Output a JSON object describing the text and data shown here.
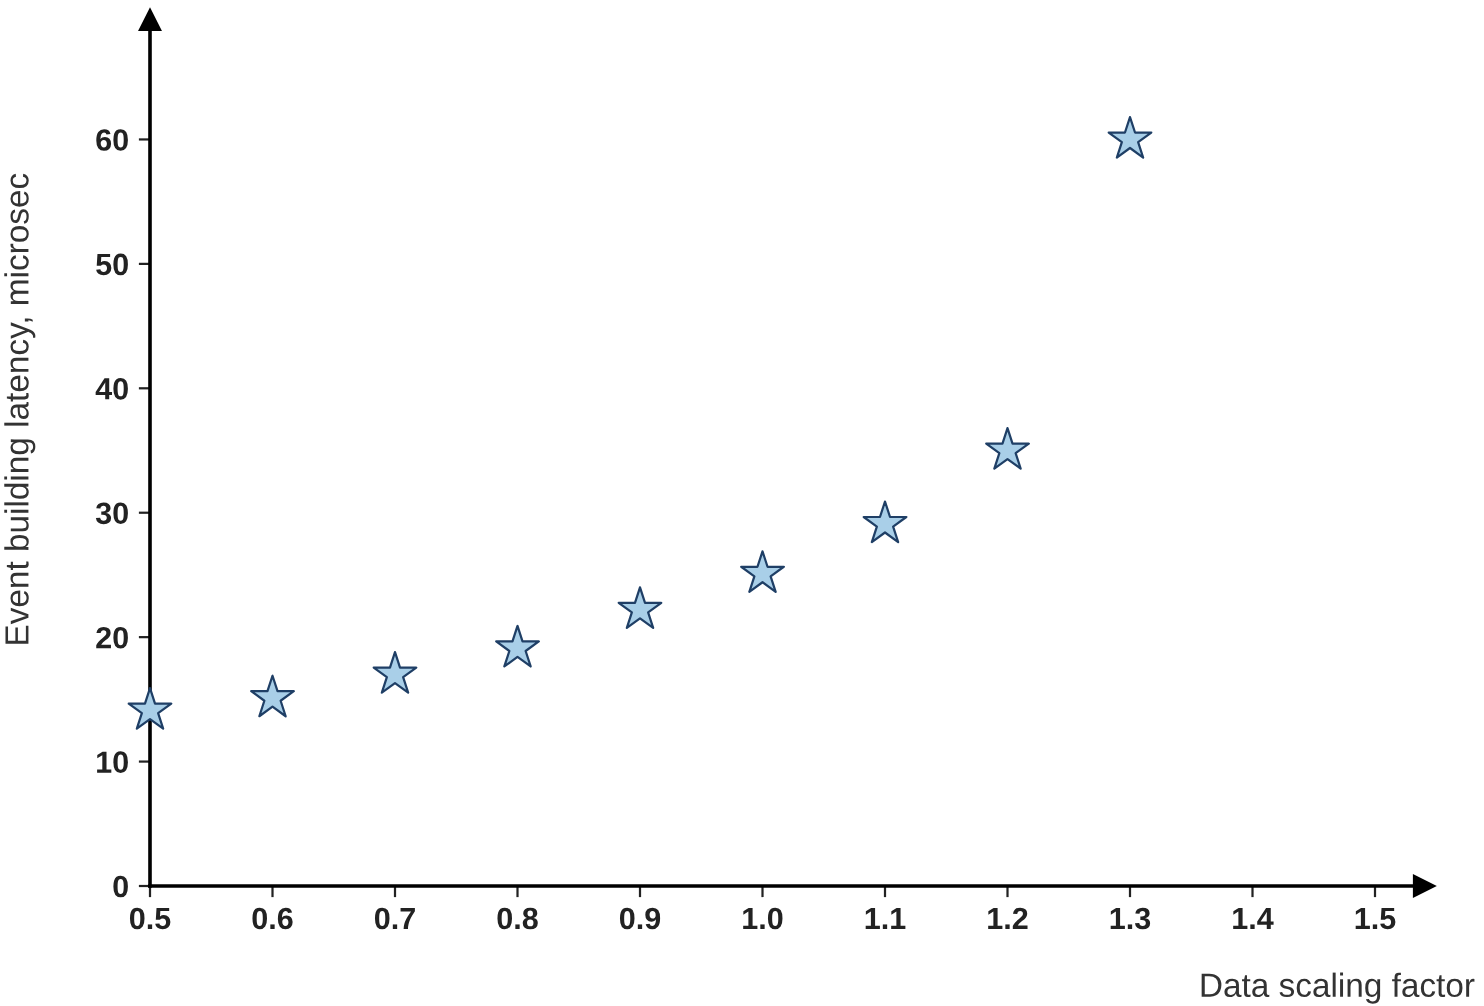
{
  "chart_data": {
    "type": "scatter",
    "xlabel": "Data scaling factor",
    "ylabel": "Event building latency, microsec",
    "x": [
      0.5,
      0.6,
      0.7,
      0.8,
      0.9,
      1.0,
      1.1,
      1.2,
      1.3
    ],
    "series": [
      {
        "color": "#a9cfe8",
        "values": [
          14.1,
          15.1,
          17.0,
          19.1,
          22.2,
          25.1,
          29.1,
          35.0,
          60.0
        ]
      }
    ],
    "xlim": [
      0.5,
      1.54
    ],
    "ylim": [
      0,
      69.6
    ],
    "xticks": [
      {
        "value": 0.5,
        "label": "0.5"
      },
      {
        "value": 0.6,
        "label": "0.6"
      },
      {
        "value": 0.7,
        "label": "0.7"
      },
      {
        "value": 0.8,
        "label": "0.8"
      },
      {
        "value": 0.9,
        "label": "0.9"
      },
      {
        "value": 1.0,
        "label": "1.0"
      },
      {
        "value": 1.1,
        "label": "1.1"
      },
      {
        "value": 1.2,
        "label": "1.2"
      },
      {
        "value": 1.3,
        "label": "1.3"
      },
      {
        "value": 1.4,
        "label": "1.4"
      },
      {
        "value": 1.5,
        "label": "1.5"
      }
    ],
    "yticks": [
      0,
      10,
      20,
      30,
      40,
      50,
      60
    ],
    "marker": "star",
    "grid": false,
    "legend": false
  }
}
